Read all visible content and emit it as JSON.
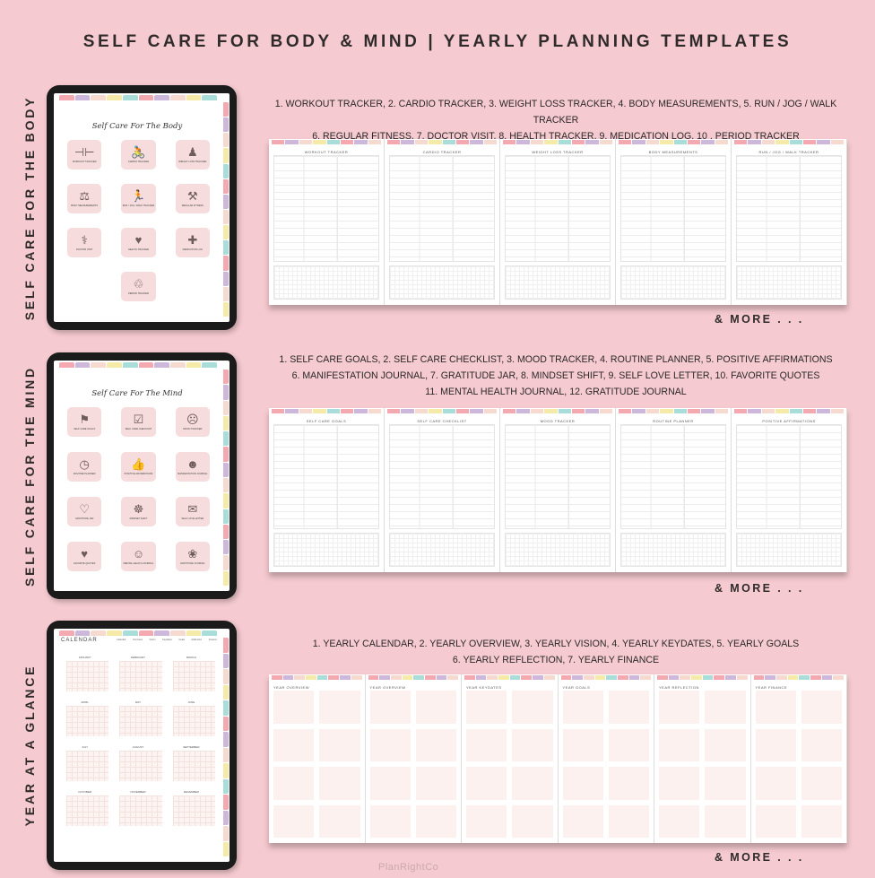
{
  "title": "SELF CARE FOR BODY & MIND | YEARLY PLANNING TEMPLATES",
  "brand": "PlanRightCo",
  "colors": {
    "background": "#f5cad0",
    "tile": "#f6dcdc",
    "tabs": [
      "#f4a9b0",
      "#cdb8dc",
      "#f6d9cf",
      "#f5eaa8",
      "#a9ddd9",
      "#f4a9b0",
      "#cdb8dc",
      "#f6d9cf",
      "#f5eaa8",
      "#a9ddd9"
    ]
  },
  "sections": [
    {
      "side_label": "SELF CARE FOR THE BODY",
      "screen_title": "Self Care For The Body",
      "tiles": [
        {
          "label": "Workout Tracker",
          "icon": "dumbbell-icon",
          "glyph": "⊣⊢"
        },
        {
          "label": "Cardio Tracker",
          "icon": "cycling-icon",
          "glyph": "🚴"
        },
        {
          "label": "Weight Loss Tracker",
          "icon": "body-icon",
          "glyph": "♟"
        },
        {
          "label": "Body Measurements",
          "icon": "measure-icon",
          "glyph": "⚖"
        },
        {
          "label": "Run / Jog / Walk Tracker",
          "icon": "running-icon",
          "glyph": "🏃"
        },
        {
          "label": "Regular Fitness",
          "icon": "weights-icon",
          "glyph": "⚒"
        },
        {
          "label": "Doctor Visit",
          "icon": "doctor-icon",
          "glyph": "⚕"
        },
        {
          "label": "Health Tracker",
          "icon": "heartbeat-icon",
          "glyph": "♥"
        },
        {
          "label": "Medication Log",
          "icon": "cross-icon",
          "glyph": "✚"
        },
        {
          "label": "Period Tracker",
          "icon": "drop-icon",
          "glyph": "♲"
        }
      ],
      "desc": [
        "1. WORKOUT TRACKER, 2. CARDIO TRACKER, 3. WEIGHT LOSS TRACKER, 4. BODY MEASUREMENTS, 5. RUN / JOG / WALK TRACKER",
        "6. REGULAR FITNESS, 7. DOCTOR VISIT, 8. HEALTH TRACKER, 9. MEDICATION LOG, 10 . PERIOD TRACKER"
      ],
      "pages": [
        "Workout Tracker",
        "Cardio Tracker",
        "Weight Loss Tracker",
        "Body Measurements",
        "Run / Jog / Walk Tracker"
      ],
      "more": "& MORE . . ."
    },
    {
      "side_label": "SELF CARE FOR THE MIND",
      "screen_title": "Self Care For The Mind",
      "tiles": [
        {
          "label": "Self Care Goals",
          "icon": "goal-icon",
          "glyph": "⚑"
        },
        {
          "label": "Self Care Checklist",
          "icon": "checklist-icon",
          "glyph": "☑"
        },
        {
          "label": "Mood Tracker",
          "icon": "mood-icon",
          "glyph": "☹"
        },
        {
          "label": "Routine Planner",
          "icon": "clock-icon",
          "glyph": "◷"
        },
        {
          "label": "Positive Affirmations",
          "icon": "thumbs-up-icon",
          "glyph": "👍"
        },
        {
          "label": "Manifestation Journal",
          "icon": "head-icon",
          "glyph": "☻"
        },
        {
          "label": "Gratitude Jar",
          "icon": "hand-heart-icon",
          "glyph": "♡"
        },
        {
          "label": "Mindset Shift",
          "icon": "mind-icon",
          "glyph": "☸"
        },
        {
          "label": "Self Love Letter",
          "icon": "letter-icon",
          "glyph": "✉"
        },
        {
          "label": "Favorite Quotes",
          "icon": "heart-circle-icon",
          "glyph": "♥"
        },
        {
          "label": "Mental Health Journal",
          "icon": "brain-icon",
          "glyph": "☺"
        },
        {
          "label": "Gratitude Journal",
          "icon": "lotus-icon",
          "glyph": "❀"
        }
      ],
      "desc": [
        "1. SELF CARE GOALS, 2. SELF CARE CHECKLIST, 3. MOOD TRACKER, 4. ROUTINE PLANNER, 5. POSITIVE AFFIRMATIONS",
        "6. MANIFESTATION JOURNAL, 7. GRATITUDE JAR, 8. MINDSET SHIFT, 9. SELF LOVE LETTER, 10. FAVORITE QUOTES",
        "11. MENTAL HEALTH JOURNAL, 12. GRATITUDE JOURNAL"
      ],
      "pages": [
        "Self Care Goals",
        "Self Care Checklist",
        "Mood Tracker",
        "Routine Planner",
        "Positive Affirmations"
      ],
      "more": "& MORE . . ."
    },
    {
      "side_label": "YEAR AT A GLANCE",
      "screen_title": "CALENDAR",
      "nav": [
        "Calendar",
        "Overview",
        "Vision",
        "Keydates",
        "Goals",
        "Reflection",
        "Finance"
      ],
      "months": [
        "January",
        "February",
        "March",
        "April",
        "May",
        "June",
        "July",
        "August",
        "September",
        "October",
        "November",
        "December"
      ],
      "desc": [
        "1. YEARLY CALENDAR, 2. YEARLY OVERVIEW, 3. YEARLY VISION, 4. YEARLY KEYDATES, 5. YEARLY GOALS",
        "6. YEARLY REFLECTION, 7. YEARLY FINANCE"
      ],
      "pages": [
        "Year Overview",
        "Year Overview",
        "Year Keydates",
        "Year Goals",
        "Year Reflection",
        "Year Finance"
      ],
      "more": "& MORE . . ."
    }
  ]
}
